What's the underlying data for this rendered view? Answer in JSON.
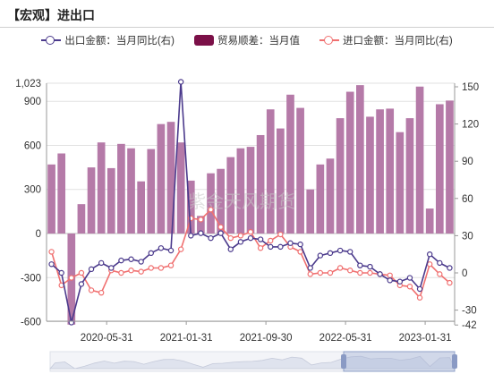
{
  "title": "【宏观】进出口",
  "legend": [
    {
      "label": "出口金额：当月同比(右)",
      "kind": "line",
      "color": "#4b3a8c"
    },
    {
      "label": "贸易顺差：当月值",
      "kind": "bar",
      "color": "#7b1048"
    },
    {
      "label": "进口金额：当月同比(右)",
      "kind": "line",
      "color": "#f07070"
    }
  ],
  "watermark": "紫金天风期货",
  "colors": {
    "bar": "#b57aa8",
    "export": "#4b3a8c",
    "import": "#f07070"
  },
  "chart_data": {
    "type": "bar",
    "title": "【宏观】进出口",
    "x_tick_labels": [
      "2020-05-31",
      "2021-01-31",
      "2021-09-30",
      "2022-05-31",
      "2023-01-31"
    ],
    "left_axis": {
      "ticks": [
        1023,
        900,
        600,
        300,
        0,
        -300,
        -600
      ],
      "ylim": [
        -610,
        1023
      ]
    },
    "right_axis": {
      "ticks": [
        150,
        120,
        90,
        60,
        30,
        0,
        -30,
        -42
      ],
      "ylim": [
        -42,
        155
      ]
    },
    "categories": [
      "2019-11",
      "2019-12",
      "2020-02",
      "2020-03",
      "2020-04",
      "2020-05",
      "2020-06",
      "2020-07",
      "2020-08",
      "2020-09",
      "2020-10",
      "2020-11",
      "2020-12",
      "2021-02",
      "2021-03",
      "2021-04",
      "2021-05",
      "2021-06",
      "2021-07",
      "2021-08",
      "2021-09",
      "2021-10",
      "2021-11",
      "2021-12",
      "2022-01",
      "2022-02",
      "2022-03",
      "2022-04",
      "2022-05",
      "2022-06",
      "2022-07",
      "2022-08",
      "2022-09",
      "2022-10",
      "2022-11",
      "2022-12",
      "2023-01",
      "2023-02",
      "2023-03",
      "2023-04",
      "2023-05"
    ],
    "series": [
      {
        "name": "贸易顺差：当月值",
        "axis": "left",
        "values": [
          470,
          545,
          -620,
          200,
          450,
          620,
          445,
          610,
          580,
          355,
          575,
          745,
          760,
          620,
          360,
          120,
          410,
          440,
          520,
          580,
          590,
          670,
          845,
          715,
          945,
          855,
          300,
          470,
          510,
          785,
          965,
          1010,
          795,
          845,
          850,
          690,
          785,
          1000,
          170,
          880,
          905
        ]
      },
      {
        "name": "出口金额：当月同比(右)",
        "axis": "right",
        "values": [
          7,
          0,
          -40,
          -9,
          3,
          8,
          4,
          10,
          11,
          9,
          16,
          20,
          18,
          154,
          30,
          32,
          28,
          32,
          19,
          25,
          28,
          27,
          21,
          21,
          24,
          23,
          4,
          14,
          16,
          18,
          17,
          6,
          5,
          -1,
          -6,
          -7,
          -4,
          -13,
          15,
          8,
          4
        ]
      },
      {
        "name": "进口金额：当月同比(右)",
        "axis": "right",
        "values": [
          17,
          -10,
          -4,
          0,
          -14,
          -16,
          2,
          0,
          2,
          1,
          4,
          4,
          6,
          19,
          44,
          43,
          51,
          37,
          28,
          30,
          33,
          20,
          26,
          31,
          21,
          17,
          -1,
          0,
          0,
          4,
          2,
          0,
          0,
          -1,
          -2,
          -10,
          -11,
          -20,
          7,
          -1,
          -8
        ]
      }
    ]
  }
}
